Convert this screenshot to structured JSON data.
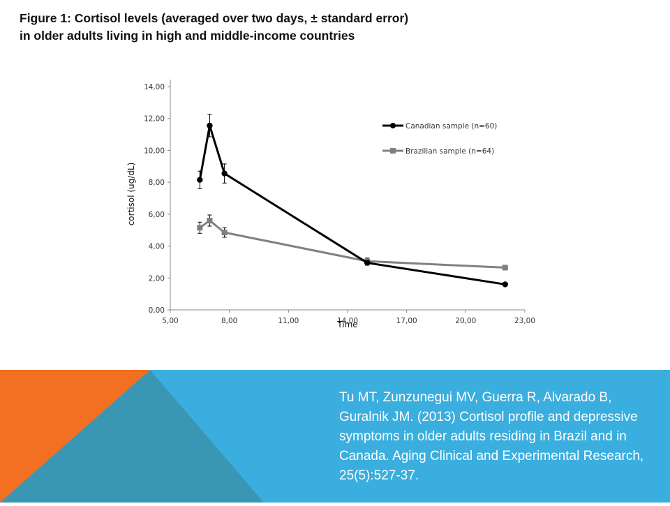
{
  "figure": {
    "title_line1": "Figure 1: Cortisol levels (averaged over two days, ± standard error)",
    "title_line2": "in older adults living in high and middle-income countries"
  },
  "citation": "Tu MT, Zunzunegui MV, Guerra R, Alvarado B, Guralnik JM. (2013) Cortisol profile and depressive symptoms in older adults residing in Brazil and in Canada. Aging Clinical and Experimental Research, 25(5):527-37.",
  "colors": {
    "canadian": "#000000",
    "brazilian": "#808080",
    "footer_blue": "#3aaede",
    "footer_orange": "#f36f21",
    "footer_teal": "#3a97b4"
  },
  "chart_data": {
    "type": "line",
    "title": "",
    "xlabel": "Time",
    "ylabel": "cortisol (ug/dL)",
    "xlim": [
      5,
      23
    ],
    "ylim": [
      0,
      14
    ],
    "x_ticks": [
      "5,00",
      "8,00",
      "11,00",
      "14,00",
      "17,00",
      "20,00",
      "23,00"
    ],
    "y_ticks": [
      "0,00",
      "2,00",
      "4,00",
      "6,00",
      "8,00",
      "10,00",
      "12,00",
      "14,00"
    ],
    "grid": false,
    "legend_position": "right",
    "series": [
      {
        "name": "Canadian sample (n=60)",
        "marker": "circle",
        "x": [
          6.5,
          7.0,
          7.75,
          15.0,
          22.0
        ],
        "y": [
          8.15,
          11.55,
          8.55,
          2.95,
          1.6
        ],
        "error": [
          0.55,
          0.7,
          0.6,
          0.15,
          0.05
        ]
      },
      {
        "name": "Brazilian sample (n=64)",
        "marker": "square",
        "x": [
          6.5,
          7.0,
          7.75,
          15.0,
          22.0
        ],
        "y": [
          5.15,
          5.6,
          4.85,
          3.05,
          2.65
        ],
        "error": [
          0.35,
          0.35,
          0.3,
          0.2,
          0.15
        ]
      }
    ]
  }
}
